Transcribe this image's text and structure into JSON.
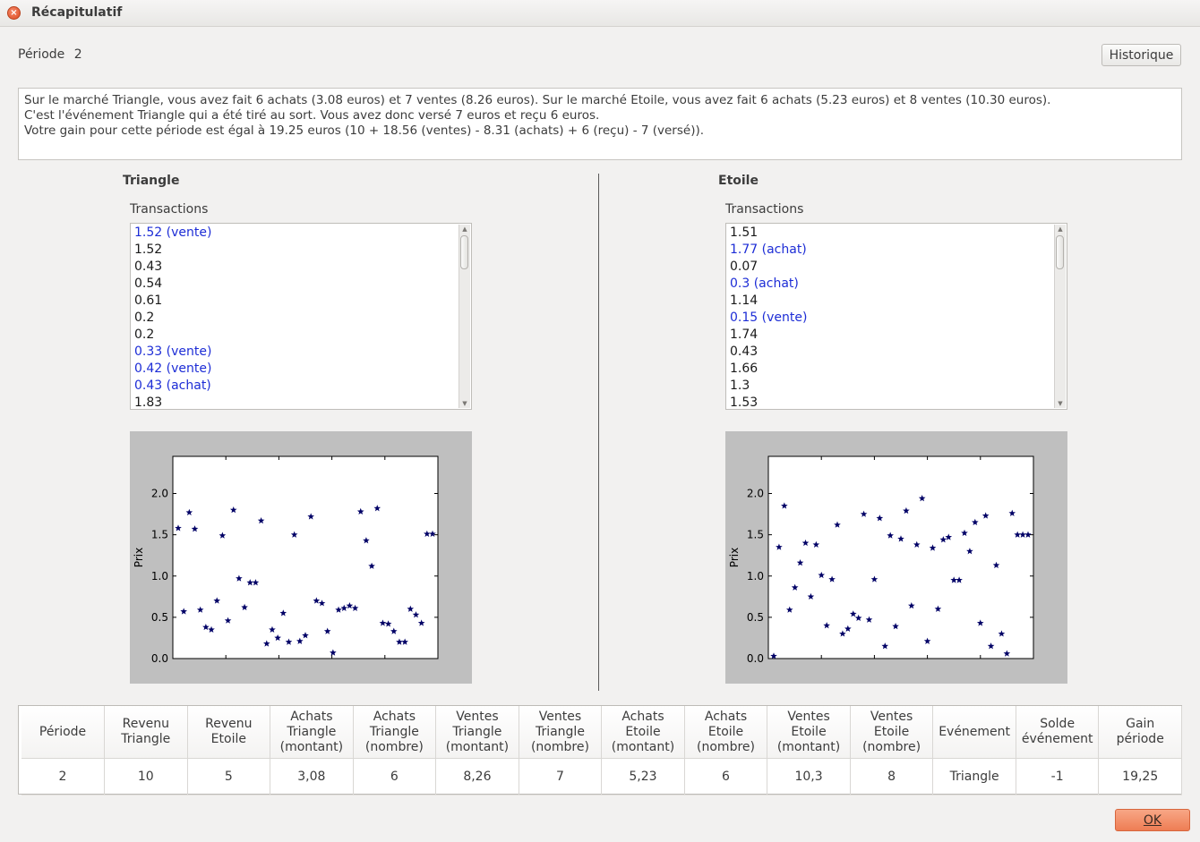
{
  "window": {
    "title": "Récapitulatif",
    "close_icon": "close-icon"
  },
  "periode": {
    "label": "Période",
    "value": "2"
  },
  "historique_button": "Historique",
  "summary": {
    "lines": [
      "Sur le marché Triangle, vous avez fait 6 achats (3.08 euros) et 7 ventes (8.26 euros). Sur le marché Etoile, vous avez fait 6 achats (5.23 euros) et 8 ventes (10.30 euros).",
      "C'est l'événement Triangle qui a été tiré au sort. Vous avez donc versé 7 euros et reçu 6 euros.",
      "Votre gain pour cette période est égal à 19.25 euros (10 + 18.56 (ventes) - 8.31 (achats) + 6 (reçu) - 7 (versé))."
    ]
  },
  "markets": [
    {
      "title": "Triangle",
      "transactions_label": "Transactions",
      "transactions": [
        {
          "text": "1.52 (vente)",
          "highlight": true
        },
        {
          "text": "1.52",
          "highlight": false
        },
        {
          "text": "0.43",
          "highlight": false
        },
        {
          "text": "0.54",
          "highlight": false
        },
        {
          "text": "0.61",
          "highlight": false
        },
        {
          "text": "0.2",
          "highlight": false
        },
        {
          "text": "0.2",
          "highlight": false
        },
        {
          "text": "0.33 (vente)",
          "highlight": true
        },
        {
          "text": "0.42 (vente)",
          "highlight": true
        },
        {
          "text": "0.43 (achat)",
          "highlight": true
        },
        {
          "text": "1.83",
          "highlight": false
        }
      ]
    },
    {
      "title": "Etoile",
      "transactions_label": "Transactions",
      "transactions": [
        {
          "text": "1.51",
          "highlight": false
        },
        {
          "text": "1.77 (achat)",
          "highlight": true
        },
        {
          "text": "0.07",
          "highlight": false
        },
        {
          "text": "0.3 (achat)",
          "highlight": true
        },
        {
          "text": "1.14",
          "highlight": false
        },
        {
          "text": "0.15 (vente)",
          "highlight": true
        },
        {
          "text": "1.74",
          "highlight": false
        },
        {
          "text": "0.43",
          "highlight": false
        },
        {
          "text": "1.66",
          "highlight": false
        },
        {
          "text": "1.3",
          "highlight": false
        },
        {
          "text": "1.53",
          "highlight": false
        }
      ]
    }
  ],
  "chart_data": [
    {
      "type": "scatter",
      "title": "",
      "ylabel": "Prix",
      "xlabel": "",
      "ylim": [
        0,
        2.45
      ],
      "yticks": [
        "0.0",
        "0.5",
        "1.0",
        "1.5",
        "2.0"
      ],
      "marker": "star",
      "marker_color": "#000066",
      "x": [
        1,
        2,
        3,
        4,
        5,
        6,
        7,
        8,
        9,
        10,
        11,
        12,
        13,
        14,
        15,
        16,
        17,
        18,
        19,
        20,
        21,
        22,
        23,
        24,
        25,
        26,
        27,
        28,
        29,
        30,
        31,
        32,
        33,
        34,
        35,
        36,
        37,
        38,
        39,
        40,
        41,
        42,
        43,
        44,
        45,
        46,
        47
      ],
      "y": [
        1.58,
        0.57,
        1.77,
        1.57,
        0.59,
        0.38,
        0.35,
        0.7,
        1.49,
        0.46,
        1.8,
        0.97,
        0.62,
        0.92,
        0.92,
        1.67,
        0.18,
        0.35,
        0.25,
        0.55,
        0.2,
        1.5,
        0.21,
        0.28,
        1.72,
        0.7,
        0.67,
        0.33,
        0.07,
        0.59,
        0.61,
        0.64,
        0.61,
        1.78,
        1.43,
        1.12,
        1.82,
        0.43,
        0.42,
        0.33,
        0.2,
        0.2,
        0.6,
        0.53,
        0.43,
        1.51,
        1.51
      ]
    },
    {
      "type": "scatter",
      "title": "",
      "ylabel": "Prix",
      "xlabel": "",
      "ylim": [
        0,
        2.45
      ],
      "yticks": [
        "0.0",
        "0.5",
        "1.0",
        "1.5",
        "2.0"
      ],
      "marker": "star",
      "marker_color": "#000066",
      "x": [
        1,
        2,
        3,
        4,
        5,
        6,
        7,
        8,
        9,
        10,
        11,
        12,
        13,
        14,
        15,
        16,
        17,
        18,
        19,
        20,
        21,
        22,
        23,
        24,
        25,
        26,
        27,
        28,
        29,
        30,
        31,
        32,
        33,
        34,
        35,
        36,
        37,
        38,
        39,
        40,
        41,
        42,
        43,
        44,
        45,
        46,
        47,
        48,
        49
      ],
      "y": [
        0.03,
        1.35,
        1.85,
        0.59,
        0.86,
        1.16,
        1.4,
        0.75,
        1.38,
        1.01,
        0.4,
        0.96,
        1.62,
        0.3,
        0.36,
        0.54,
        0.49,
        1.75,
        0.47,
        0.96,
        1.7,
        0.15,
        1.49,
        0.39,
        1.45,
        1.79,
        0.64,
        1.38,
        1.94,
        0.21,
        1.34,
        0.6,
        1.44,
        1.47,
        0.95,
        0.95,
        1.52,
        1.3,
        1.65,
        0.43,
        1.73,
        0.15,
        1.13,
        0.3,
        0.06,
        1.76,
        1.5,
        1.5,
        1.5
      ]
    }
  ],
  "results_table": {
    "headers": [
      "Période",
      "Revenu\nTriangle",
      "Revenu\nEtoile",
      "Achats\nTriangle\n(montant)",
      "Achats\nTriangle\n(nombre)",
      "Ventes\nTriangle\n(montant)",
      "Ventes\nTriangle\n(nombre)",
      "Achats\nEtoile\n(montant)",
      "Achats\nEtoile\n(nombre)",
      "Ventes\nEtoile\n(montant)",
      "Ventes\nEtoile\n(nombre)",
      "Evénement",
      "Solde\névénement",
      "Gain\npériode"
    ],
    "row": [
      "2",
      "10",
      "5",
      "3,08",
      "6",
      "8,26",
      "7",
      "5,23",
      "6",
      "10,3",
      "8",
      "Triangle",
      "-1",
      "19,25"
    ]
  },
  "ok_button": "OK",
  "colors": {
    "highlight": "#1d2dd6",
    "ok_button": "#ee7d54",
    "chart_background": "#bfbfbf"
  }
}
